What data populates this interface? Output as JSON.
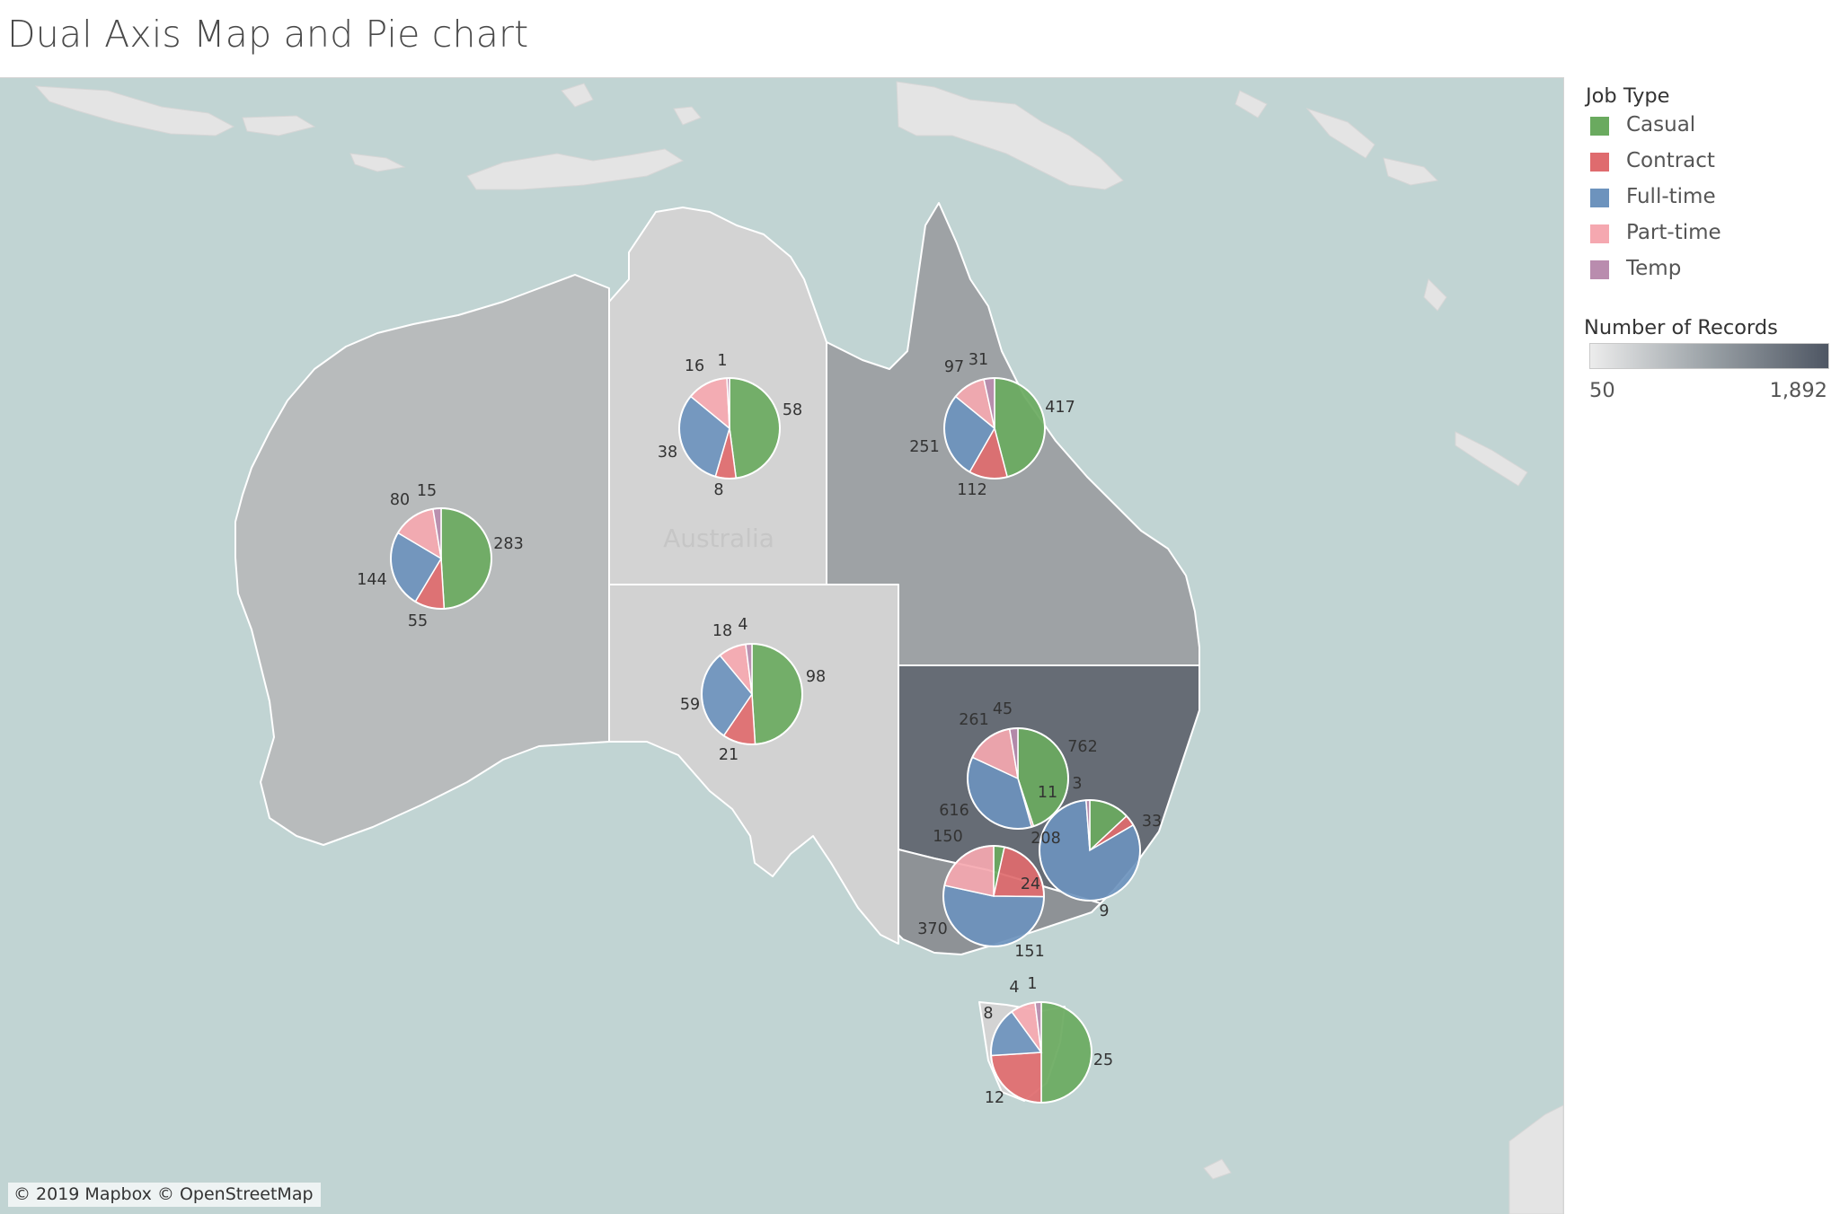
{
  "title": "Dual Axis Map and Pie chart",
  "attribution": "© 2019 Mapbox © OpenStreetMap",
  "map_label": "Australia",
  "legend": {
    "title": "Job Type",
    "items": [
      {
        "label": "Casual",
        "color": "#6aaa5f"
      },
      {
        "label": "Contract",
        "color": "#df6b6e"
      },
      {
        "label": "Full-time",
        "color": "#6d93bd"
      },
      {
        "label": "Part-time",
        "color": "#f5a8b0"
      },
      {
        "label": "Temp",
        "color": "#b98cae"
      }
    ]
  },
  "color_scale": {
    "title": "Number of Records",
    "min_label": "50",
    "max_label": "1,892",
    "min": 50,
    "max": 1892,
    "colors": [
      "#ececec",
      "#4e5663"
    ]
  },
  "chart_data": {
    "type": "pie",
    "encoding": "dual-axis map: filled states colored by Number of Records, pie per state split by Job Type",
    "categories": [
      "Casual",
      "Contract",
      "Full-time",
      "Part-time",
      "Temp"
    ],
    "states": [
      {
        "state": "WA",
        "values": {
          "Casual": 283,
          "Contract": 55,
          "Full-time": 144,
          "Part-time": 80,
          "Temp": 15
        }
      },
      {
        "state": "NT",
        "values": {
          "Casual": 58,
          "Contract": 8,
          "Full-time": 38,
          "Part-time": 16,
          "Temp": 1
        }
      },
      {
        "state": "QLD",
        "values": {
          "Casual": 417,
          "Contract": 112,
          "Full-time": 251,
          "Part-time": 97,
          "Temp": 31
        }
      },
      {
        "state": "SA",
        "values": {
          "Casual": 98,
          "Contract": 21,
          "Full-time": 59,
          "Part-time": 18,
          "Temp": 4
        }
      },
      {
        "state": "NSW",
        "values": {
          "Casual": 762,
          "Contract": 11,
          "Full-time": 616,
          "Part-time": 261,
          "Temp": 45
        }
      },
      {
        "state": "ACT",
        "values": {
          "Casual": 33,
          "Contract": 9,
          "Full-time": 208,
          "Part-time": null,
          "Temp": 3
        }
      },
      {
        "state": "VIC",
        "values": {
          "Casual": 24,
          "Contract": 151,
          "Full-time": 370,
          "Part-time": 150,
          "Temp": null
        }
      },
      {
        "state": "TAS",
        "values": {
          "Casual": 25,
          "Contract": 12,
          "Full-time": 8,
          "Part-time": 4,
          "Temp": 1
        }
      }
    ]
  }
}
